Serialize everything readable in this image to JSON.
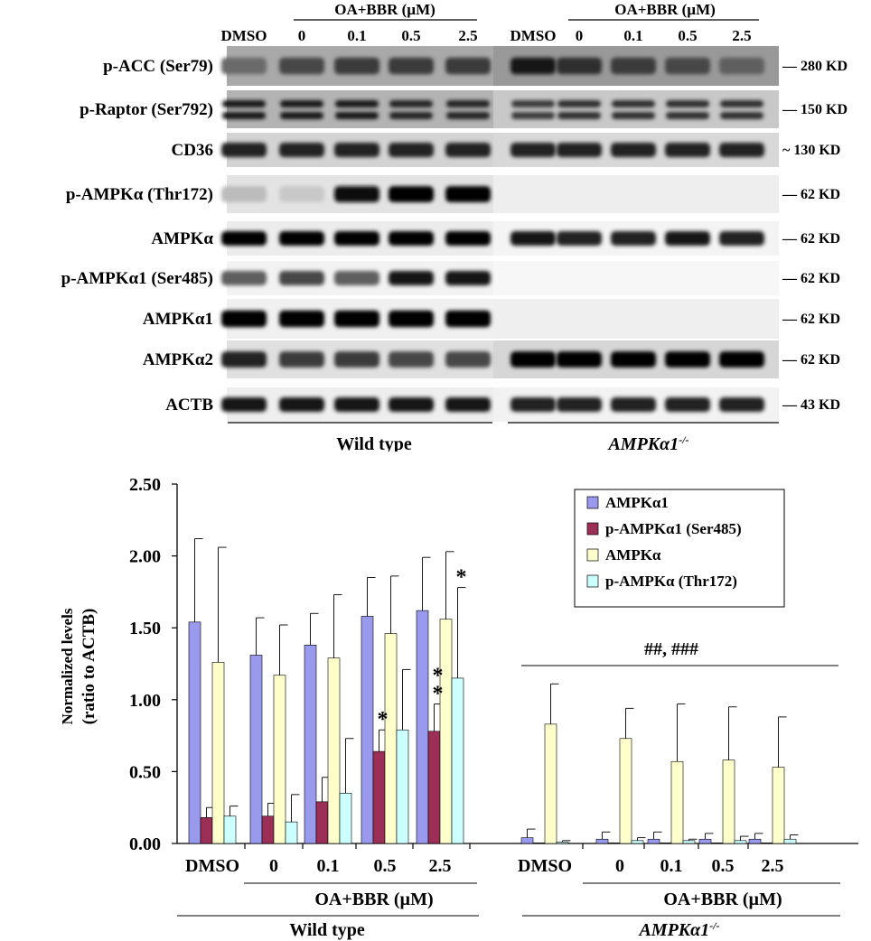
{
  "blot": {
    "header_treatment": "OA+BBR (µM)",
    "lane_labels": [
      "DMSO",
      "0",
      "0.1",
      "0.5",
      "2.5",
      "DMSO",
      "0",
      "0.1",
      "0.5",
      "2.5"
    ],
    "rows": [
      {
        "label": "p-ACC (Ser79)",
        "size": "— 280 KD"
      },
      {
        "label": "p-Raptor (Ser792)",
        "size": "— 150 KD"
      },
      {
        "label": "CD36",
        "size": "~ 130 KD"
      },
      {
        "label": "p-AMPKα (Thr172)",
        "size": "— 62 KD"
      },
      {
        "label": "AMPKα",
        "size": "— 62 KD"
      },
      {
        "label": "p-AMPKα1 (Ser485)",
        "size": "— 62 KD"
      },
      {
        "label": "AMPKα1",
        "size": "— 62 KD"
      },
      {
        "label": "AMPKα2",
        "size": "— 62 KD"
      },
      {
        "label": "ACTB",
        "size": "— 43 KD"
      }
    ],
    "group_wt": "Wild type",
    "group_ko": "AMPKα1",
    "group_ko_sup": "-/-"
  },
  "chart_data": {
    "type": "bar",
    "ylabel_line1": "Normalized levels",
    "ylabel_line2": "(ratio to ACTB)",
    "ylim": [
      0,
      2.5
    ],
    "yticks": [
      "0.00",
      "0.50",
      "1.00",
      "1.50",
      "2.00",
      "2.50"
    ],
    "categories": [
      "DMSO",
      "0",
      "0.1",
      "0.5",
      "2.5",
      "DMSO",
      "0",
      "0.1",
      "0.5",
      "2.5"
    ],
    "treatment_label": "OA+BBR (µM)",
    "group_wt": "Wild type",
    "group_ko": "AMPKα1",
    "group_ko_sup": "-/-",
    "series": [
      {
        "name": "AMPKα1",
        "color": "#9999ee",
        "values": [
          1.54,
          1.31,
          1.38,
          1.58,
          1.62,
          0.04,
          0.03,
          0.03,
          0.03,
          0.03
        ],
        "errors": [
          0.58,
          0.26,
          0.22,
          0.27,
          0.37,
          0.06,
          0.05,
          0.05,
          0.04,
          0.04
        ]
      },
      {
        "name": "p-AMPKα1 (Ser485)",
        "color": "#9c2f58",
        "values": [
          0.18,
          0.19,
          0.29,
          0.64,
          0.78,
          0.0,
          0.0,
          0.0,
          0.0,
          0.0
        ],
        "errors": [
          0.07,
          0.09,
          0.17,
          0.15,
          0.19,
          0.0,
          0.0,
          0.0,
          0.0,
          0.0
        ]
      },
      {
        "name": "AMPKα",
        "color": "#ffffcc",
        "values": [
          1.26,
          1.17,
          1.29,
          1.46,
          1.56,
          0.83,
          0.73,
          0.57,
          0.58,
          0.53
        ],
        "errors": [
          0.8,
          0.35,
          0.44,
          0.4,
          0.47,
          0.28,
          0.21,
          0.4,
          0.37,
          0.35
        ]
      },
      {
        "name": "p-AMPKα (Thr172)",
        "color": "#ccffff",
        "values": [
          0.19,
          0.15,
          0.35,
          0.79,
          1.15,
          0.01,
          0.02,
          0.02,
          0.02,
          0.03
        ],
        "errors": [
          0.07,
          0.19,
          0.38,
          0.42,
          0.63,
          0.01,
          0.02,
          0.01,
          0.03,
          0.03
        ]
      }
    ],
    "annotations": [
      {
        "text": "*",
        "cat": 3,
        "series": 1
      },
      {
        "text": "*",
        "cat": 4,
        "series": 1
      },
      {
        "text": "*",
        "cat": 4,
        "series": 1,
        "stack": 1
      },
      {
        "text": "*",
        "cat": 4,
        "series": 3
      }
    ],
    "ko_annotation": "##, ###",
    "legend_position": "top-right"
  }
}
